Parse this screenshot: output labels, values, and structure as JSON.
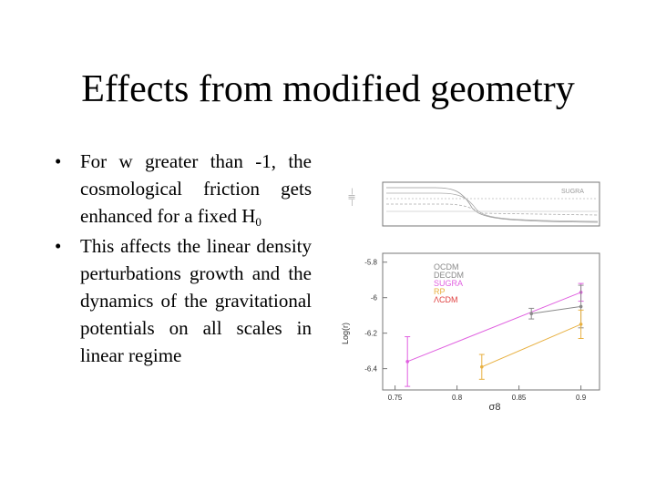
{
  "slide": {
    "title": "Effects from modified geometry",
    "bullets": [
      {
        "text": "For w greater than -1, the cosmological friction gets enhanced for a fixed H",
        "sub": "0"
      },
      {
        "text": "This affects the linear density perturbations growth and the dynamics of the gravitational potentials on all scales in linear regime",
        "sub": ""
      }
    ],
    "bullet_symbol": "•"
  },
  "chart_data": [
    {
      "type": "line",
      "title": "",
      "xlabel": "",
      "ylabel": "",
      "annotation": "SUGRA",
      "series_count": 5,
      "notes": "small top panel showing several curves; tick values not legible"
    },
    {
      "type": "scatter",
      "xlabel": "σ8",
      "ylabel": "Log(r)",
      "xlim": [
        0.74,
        0.915
      ],
      "ylim": [
        -6.52,
        -5.75
      ],
      "x_ticks": [
        "0.75",
        "0.8",
        "0.85",
        "0.9"
      ],
      "y_ticks": [
        "-5.8",
        "-6",
        "-6.2",
        "-6.4"
      ],
      "legend": [
        {
          "name": "OCDM",
          "color": "#8a8a8a"
        },
        {
          "name": "DECDM",
          "color": "#8a8a8a"
        },
        {
          "name": "SUGRA",
          "color": "#e060e0"
        },
        {
          "name": "RP",
          "color": "#e8b040"
        },
        {
          "name": "ΛCDM",
          "color": "#e04040"
        }
      ],
      "series": [
        {
          "name": "SUGRA",
          "color": "#e060e0",
          "points": [
            {
              "x": 0.76,
              "y": -6.36,
              "err": 0.14
            },
            {
              "x": 0.9,
              "y": -5.97,
              "err": 0.05
            }
          ]
        },
        {
          "name": "DECDM",
          "color": "#8a8a8a",
          "points": [
            {
              "x": 0.86,
              "y": -6.09,
              "err": 0.03
            },
            {
              "x": 0.9,
              "y": -6.05,
              "err": 0.12
            }
          ]
        },
        {
          "name": "RP",
          "color": "#e8b040",
          "points": [
            {
              "x": 0.82,
              "y": -6.39,
              "err": 0.07
            },
            {
              "x": 0.9,
              "y": -6.15,
              "err": 0.08
            }
          ]
        }
      ]
    }
  ]
}
